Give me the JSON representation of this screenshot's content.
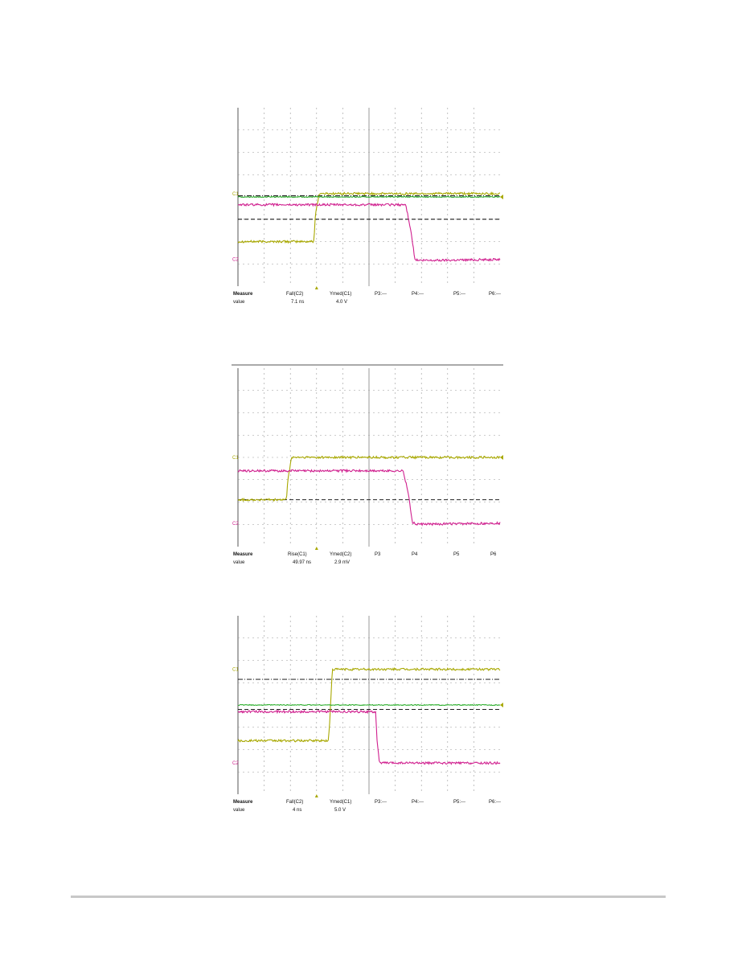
{
  "colors": {
    "yellow_trace": "#a8a800",
    "magenta_trace": "#d0208f",
    "green_trace": "#30b030",
    "grid": "#9a9a9a",
    "axis": "#555555",
    "cursor": "#000000",
    "footer_rule": "#c8c8c8"
  },
  "chart_data": [
    {
      "type": "line",
      "xlim": [
        0,
        10
      ],
      "ylim": [
        -4,
        4
      ],
      "grid": true,
      "readout": {
        "header": [
          "Measure",
          "Fall(C2)",
          "Ymed(C1)",
          "P3:---",
          "P4:---",
          "P5:---",
          "P6:---"
        ],
        "values": [
          "value",
          "7.1 ns",
          "4.0 V"
        ]
      },
      "channel_markers": [
        "C1",
        "C2"
      ],
      "series": [
        {
          "color": "yellow_trace",
          "x": [
            0,
            2.9,
            2.95,
            3.1,
            10
          ],
          "y": [
            -2.0,
            -2.0,
            -0.8,
            0.15,
            0.15
          ]
        },
        {
          "color": "magenta_trace",
          "x": [
            0,
            6.4,
            6.6,
            6.75,
            6.9,
            10
          ],
          "y": [
            -0.35,
            -0.35,
            -1.5,
            -2.8,
            -2.85,
            -2.8
          ]
        },
        {
          "color": "green_trace",
          "x": [
            0,
            10
          ],
          "y": [
            0.0,
            0.0
          ]
        }
      ],
      "cursors": [
        {
          "style": "dash-dot",
          "y": 0.05
        },
        {
          "style": "dash",
          "y": -1.0
        }
      ]
    },
    {
      "type": "line",
      "xlim": [
        0,
        10
      ],
      "ylim": [
        -4,
        4
      ],
      "grid": true,
      "readout": {
        "header": [
          "Measure",
          "Rise(C1)",
          "Ymed(C2)",
          "P3",
          "P4",
          "P5",
          "P6"
        ],
        "values": [
          "value",
          "49.97 ns",
          "2.9 mV"
        ]
      },
      "channel_markers": [
        "C1",
        "C2"
      ],
      "series": [
        {
          "color": "yellow_trace",
          "x": [
            0,
            1.85,
            1.9,
            2.05,
            10
          ],
          "y": [
            -1.9,
            -1.9,
            -1.0,
            0.0,
            0.0
          ]
        },
        {
          "color": "magenta_trace",
          "x": [
            0,
            6.3,
            6.5,
            6.65,
            6.8,
            10
          ],
          "y": [
            -0.6,
            -0.6,
            -1.6,
            -2.9,
            -3.0,
            -2.95
          ]
        }
      ],
      "cursors": [
        {
          "style": "dash",
          "y": -1.9
        }
      ]
    },
    {
      "type": "line",
      "xlim": [
        0,
        10
      ],
      "ylim": [
        -4,
        4
      ],
      "grid": true,
      "readout": {
        "header": [
          "Measure",
          "Fall(C2)",
          "Ymed(C1)",
          "P3:---",
          "P4:---",
          "P5:---",
          "P6:---"
        ],
        "values": [
          "value",
          "4 ns",
          "5.0 V"
        ]
      },
      "channel_markers": [
        "C1",
        "C2"
      ],
      "series": [
        {
          "color": "yellow_trace",
          "x": [
            0,
            3.45,
            3.5,
            3.6,
            10
          ],
          "y": [
            -1.6,
            -1.6,
            -0.8,
            1.6,
            1.6
          ]
        },
        {
          "color": "magenta_trace",
          "x": [
            0,
            5.25,
            5.3,
            5.4,
            10
          ],
          "y": [
            -0.3,
            -0.3,
            -1.5,
            -2.6,
            -2.6
          ]
        },
        {
          "color": "green_trace",
          "x": [
            0,
            10
          ],
          "y": [
            0.0,
            0.0
          ]
        }
      ],
      "cursors": [
        {
          "style": "dash-dot",
          "y": 1.15
        },
        {
          "style": "dash",
          "y": -0.2
        }
      ]
    }
  ]
}
